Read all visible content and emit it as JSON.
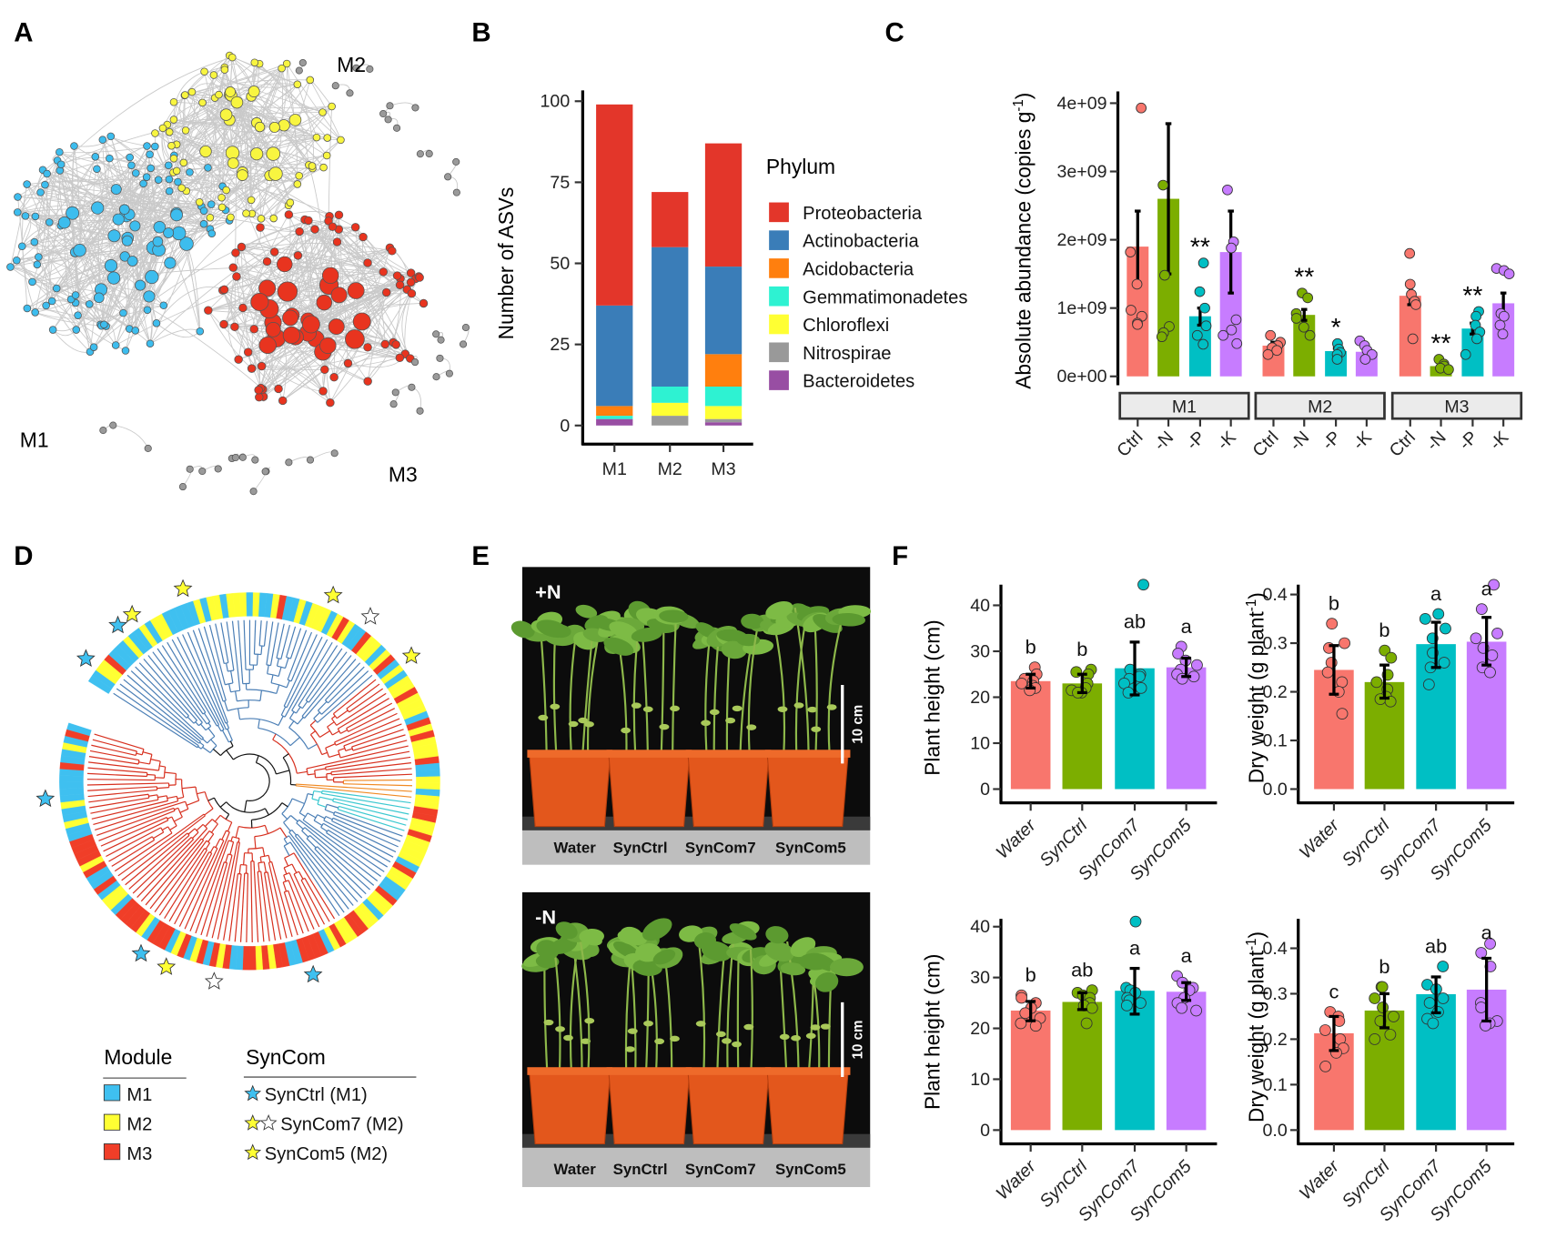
{
  "panel_labels": {
    "a": "A",
    "b": "B",
    "c": "C",
    "d": "D",
    "e": "E",
    "f": "F"
  },
  "network": {
    "module_labels": [
      "M1",
      "M2",
      "M3"
    ],
    "colors": {
      "M1": "#3DBDEE",
      "M2": "#F8F540",
      "M3": "#E8341F",
      "other": "#9A9A9A"
    }
  },
  "tree_legend": {
    "module_title": "Module",
    "modules": [
      {
        "label": "M1",
        "color": "#3FC0F0"
      },
      {
        "label": "M2",
        "color": "#FFFF33"
      },
      {
        "label": "M3",
        "color": "#F03E28"
      }
    ],
    "syncom_title": "SynCom",
    "syncoms": [
      {
        "label": "SynCtrl (M1)",
        "stars": [
          "#3FC0F0"
        ]
      },
      {
        "label": "SynCom7 (M2)",
        "stars": [
          "#FFFF33",
          "#FFFFFF"
        ]
      },
      {
        "label": "SynCom5 (M2)",
        "stars": [
          "#FFFF33"
        ]
      }
    ]
  },
  "photos": [
    {
      "condition": "+N",
      "scale": "10 cm",
      "labels": [
        "Water",
        "SynCtrl",
        "SynCom7",
        "SynCom5"
      ]
    },
    {
      "condition": "-N",
      "scale": "10 cm",
      "labels": [
        "Water",
        "SynCtrl",
        "SynCom7",
        "SynCom5"
      ]
    }
  ],
  "chart_data": [
    {
      "id": "B",
      "type": "bar",
      "stacked": true,
      "categories": [
        "M1",
        "M2",
        "M3"
      ],
      "xlabel": "",
      "ylabel": "Number of  ASVs",
      "ylim": [
        0,
        100
      ],
      "yticks": [
        0,
        25,
        50,
        75,
        100
      ],
      "legend_title": "Phylum",
      "legend_position": "right",
      "series": [
        {
          "name": "Proteobacteria",
          "color": "#E3362A",
          "values": [
            62,
            17,
            38
          ]
        },
        {
          "name": "Actinobacteria",
          "color": "#3A7DB8",
          "values": [
            31,
            43,
            27
          ]
        },
        {
          "name": "Acidobacteria",
          "color": "#FF7F0E",
          "values": [
            3,
            0,
            10
          ]
        },
        {
          "name": "Gemmatimonadetes",
          "color": "#2EF2D2",
          "values": [
            1,
            5,
            6
          ]
        },
        {
          "name": "Chloroflexi",
          "color": "#FFFF33",
          "values": [
            0,
            4,
            4
          ]
        },
        {
          "name": "Nitrospirae",
          "color": "#999999",
          "values": [
            0,
            3,
            1
          ]
        },
        {
          "name": "Bacteroidetes",
          "color": "#984EA3",
          "values": [
            2,
            0,
            1
          ]
        }
      ]
    },
    {
      "id": "C",
      "type": "bar",
      "ylabel_main": "Absolute abundance (copies g",
      "ylabel_sup": "-1",
      "ylabel_end": ")",
      "ylim": [
        0,
        4000000000.0
      ],
      "yticks": [
        0,
        1000000000.0,
        2000000000.0,
        3000000000.0,
        4000000000.0
      ],
      "ytick_labels": [
        "0e+00",
        "1e+09",
        "2e+09",
        "3e+09",
        "4e+09"
      ],
      "facets": [
        "M1",
        "M2",
        "M3"
      ],
      "categories": [
        "Ctrl",
        "-N",
        "-P",
        "-K"
      ],
      "colors": [
        "#F8766D",
        "#7CAE00",
        "#00BFC4",
        "#C77CFF"
      ],
      "groups": [
        {
          "facet": "M1",
          "means": [
            1900000000.0,
            2600000000.0,
            880000000.0,
            1820000000.0
          ],
          "err": [
            [
              1350000000.0,
              2420000000.0
            ],
            [
              1500000000.0,
              3700000000.0
            ],
            [
              750000000.0,
              1000000000.0
            ],
            [
              1220000000.0,
              2420000000.0
            ]
          ],
          "sig": [
            "",
            "",
            "**",
            ""
          ],
          "points": [
            [
              3930000000.0,
              1820000000.0,
              1350000000.0,
              970000000.0,
              880000000.0,
              780000000.0,
              760000000.0
            ],
            [
              2800000000.0,
              1480000000.0,
              730000000.0,
              640000000.0,
              580000000.0
            ],
            [
              1660000000.0,
              1240000000.0,
              1000000000.0,
              740000000.0,
              600000000.0,
              470000000.0
            ],
            [
              2730000000.0,
              1970000000.0,
              1880000000.0,
              830000000.0,
              680000000.0,
              600000000.0,
              480000000.0
            ]
          ]
        },
        {
          "facet": "M2",
          "means": [
            450000000.0,
            900000000.0,
            370000000.0,
            360000000.0
          ],
          "err": [
            [
              400000000.0,
              500000000.0
            ],
            [
              820000000.0,
              980000000.0
            ],
            [
              330000000.0,
              410000000.0
            ],
            [
              320000000.0,
              400000000.0
            ]
          ],
          "sig": [
            "",
            "**",
            "*",
            ""
          ],
          "points": [
            [
              600000000.0,
              500000000.0,
              450000000.0,
              420000000.0,
              380000000.0,
              320000000.0
            ],
            [
              1220000000.0,
              1150000000.0,
              920000000.0,
              850000000.0,
              720000000.0,
              600000000.0
            ],
            [
              480000000.0,
              400000000.0,
              350000000.0,
              320000000.0,
              250000000.0
            ],
            [
              520000000.0,
              450000000.0,
              380000000.0,
              320000000.0,
              250000000.0
            ]
          ]
        },
        {
          "facet": "M3",
          "means": [
            1180000000.0,
            150000000.0,
            700000000.0,
            1070000000.0
          ],
          "err": [
            [
              1050000000.0,
              1300000000.0
            ],
            [
              120000000.0,
              180000000.0
            ],
            [
              620000000.0,
              780000000.0
            ],
            [
              920000000.0,
              1220000000.0
            ]
          ],
          "sig": [
            "",
            "**",
            "**",
            ""
          ],
          "points": [
            [
              1800000000.0,
              1350000000.0,
              1200000000.0,
              1100000000.0,
              1050000000.0,
              550000000.0
            ],
            [
              250000000.0,
              180000000.0,
              150000000.0,
              120000000.0,
              100000000.0
            ],
            [
              950000000.0,
              880000000.0,
              750000000.0,
              650000000.0,
              550000000.0,
              320000000.0
            ],
            [
              1580000000.0,
              1550000000.0,
              1500000000.0,
              920000000.0,
              880000000.0,
              750000000.0,
              620000000.0
            ]
          ]
        }
      ]
    },
    {
      "id": "F-top-height",
      "type": "bar",
      "condition": "+N",
      "ylabel_main": "Plant height (cm)",
      "ylabel_sup": "",
      "ylabel_end": "",
      "categories": [
        "Water",
        "SynCtrl",
        "SynCom7",
        "SynCom5"
      ],
      "colors": [
        "#F8766D",
        "#7CAE00",
        "#00BFC4",
        "#C77CFF"
      ],
      "ylim": [
        0,
        45
      ],
      "yticks": [
        0,
        10,
        20,
        30,
        40
      ],
      "ytick_labels": [
        "0",
        "10",
        "20",
        "30",
        "40"
      ],
      "means": [
        23.5,
        23,
        26.3,
        26.5
      ],
      "err": [
        [
          22,
          25
        ],
        [
          21,
          25
        ],
        [
          20.5,
          32
        ],
        [
          24.5,
          28.5
        ]
      ],
      "letters": [
        "b",
        "b",
        "ab",
        "a"
      ],
      "points": [
        [
          26.5,
          25,
          24,
          23.5,
          23,
          22.5,
          22,
          21.5
        ],
        [
          26,
          25.5,
          25,
          23,
          22,
          21.5,
          21,
          21
        ],
        [
          44.5,
          26,
          25,
          24.5,
          24,
          23,
          22,
          21
        ],
        [
          31,
          29.5,
          28,
          27,
          26,
          25,
          24.5,
          24
        ]
      ]
    },
    {
      "id": "F-top-dryweight",
      "type": "bar",
      "condition": "+N",
      "ylabel_main": "Dry weight (g plant",
      "ylabel_sup": "-1",
      "ylabel_end": ")",
      "categories": [
        "Water",
        "SynCtrl",
        "SynCom7",
        "SynCom5"
      ],
      "colors": [
        "#F8766D",
        "#7CAE00",
        "#00BFC4",
        "#C77CFF"
      ],
      "ylim": [
        0,
        0.44
      ],
      "yticks": [
        0,
        0.1,
        0.2,
        0.3,
        0.4
      ],
      "ytick_labels": [
        "0.0",
        "0.1",
        "0.2",
        "0.3",
        "0.4"
      ],
      "means": [
        0.245,
        0.22,
        0.298,
        0.303
      ],
      "err": [
        [
          0.195,
          0.295
        ],
        [
          0.187,
          0.255
        ],
        [
          0.25,
          0.343
        ],
        [
          0.255,
          0.353
        ]
      ],
      "letters": [
        "b",
        "b",
        "a",
        "a"
      ],
      "points": [
        [
          0.34,
          0.3,
          0.29,
          0.26,
          0.24,
          0.22,
          0.2,
          0.155
        ],
        [
          0.285,
          0.27,
          0.235,
          0.22,
          0.205,
          0.19,
          0.185,
          0.18
        ],
        [
          0.36,
          0.35,
          0.33,
          0.31,
          0.28,
          0.26,
          0.25,
          0.215
        ],
        [
          0.42,
          0.37,
          0.32,
          0.31,
          0.29,
          0.275,
          0.25,
          0.24
        ]
      ]
    },
    {
      "id": "F-bottom-height",
      "type": "bar",
      "condition": "-N",
      "ylabel_main": "Plant height (cm)",
      "ylabel_sup": "",
      "ylabel_end": "",
      "categories": [
        "Water",
        "SynCtrl",
        "SynCom7",
        "SynCom5"
      ],
      "colors": [
        "#F8766D",
        "#7CAE00",
        "#00BFC4",
        "#C77CFF"
      ],
      "ylim": [
        0,
        42
      ],
      "yticks": [
        0,
        10,
        20,
        30,
        40
      ],
      "ytick_labels": [
        "0",
        "10",
        "20",
        "30",
        "40"
      ],
      "means": [
        23.5,
        25.2,
        27.4,
        27.2
      ],
      "err": [
        [
          21.5,
          25.3
        ],
        [
          23.7,
          27
        ],
        [
          22.8,
          31.8
        ],
        [
          25.5,
          29
        ]
      ],
      "letters": [
        "b",
        "ab",
        "a",
        "a"
      ],
      "points": [
        [
          26.5,
          26,
          25,
          24,
          23,
          22,
          21,
          20.5
        ],
        [
          27.5,
          27,
          26.5,
          26,
          25,
          24.5,
          24,
          21
        ],
        [
          41,
          28,
          27.5,
          27,
          26,
          25.5,
          25,
          24.5
        ],
        [
          30.3,
          29,
          28,
          27.5,
          26,
          25,
          24,
          23.5
        ]
      ]
    },
    {
      "id": "F-bottom-dryweight",
      "type": "bar",
      "condition": "-N",
      "ylabel_main": "Dry weight (g plant",
      "ylabel_sup": "-1",
      "ylabel_end": ")",
      "categories": [
        "Water",
        "SynCtrl",
        "SynCom7",
        "SynCom5"
      ],
      "colors": [
        "#F8766D",
        "#7CAE00",
        "#00BFC4",
        "#C77CFF"
      ],
      "ylim": [
        0,
        0.46
      ],
      "yticks": [
        0,
        0.1,
        0.2,
        0.3,
        0.4
      ],
      "ytick_labels": [
        "0.0",
        "0.1",
        "0.2",
        "0.3",
        "0.4"
      ],
      "means": [
        0.213,
        0.263,
        0.299,
        0.309
      ],
      "err": [
        [
          0.175,
          0.25
        ],
        [
          0.225,
          0.3
        ],
        [
          0.258,
          0.337
        ],
        [
          0.24,
          0.378
        ]
      ],
      "letters": [
        "c",
        "b",
        "ab",
        "a"
      ],
      "points": [
        [
          0.26,
          0.25,
          0.24,
          0.22,
          0.2,
          0.18,
          0.17,
          0.14
        ],
        [
          0.315,
          0.315,
          0.29,
          0.27,
          0.25,
          0.24,
          0.21,
          0.2
        ],
        [
          0.36,
          0.32,
          0.31,
          0.29,
          0.28,
          0.26,
          0.245,
          0.235
        ],
        [
          0.41,
          0.39,
          0.36,
          0.28,
          0.27,
          0.24,
          0.235,
          0.23
        ]
      ]
    }
  ]
}
